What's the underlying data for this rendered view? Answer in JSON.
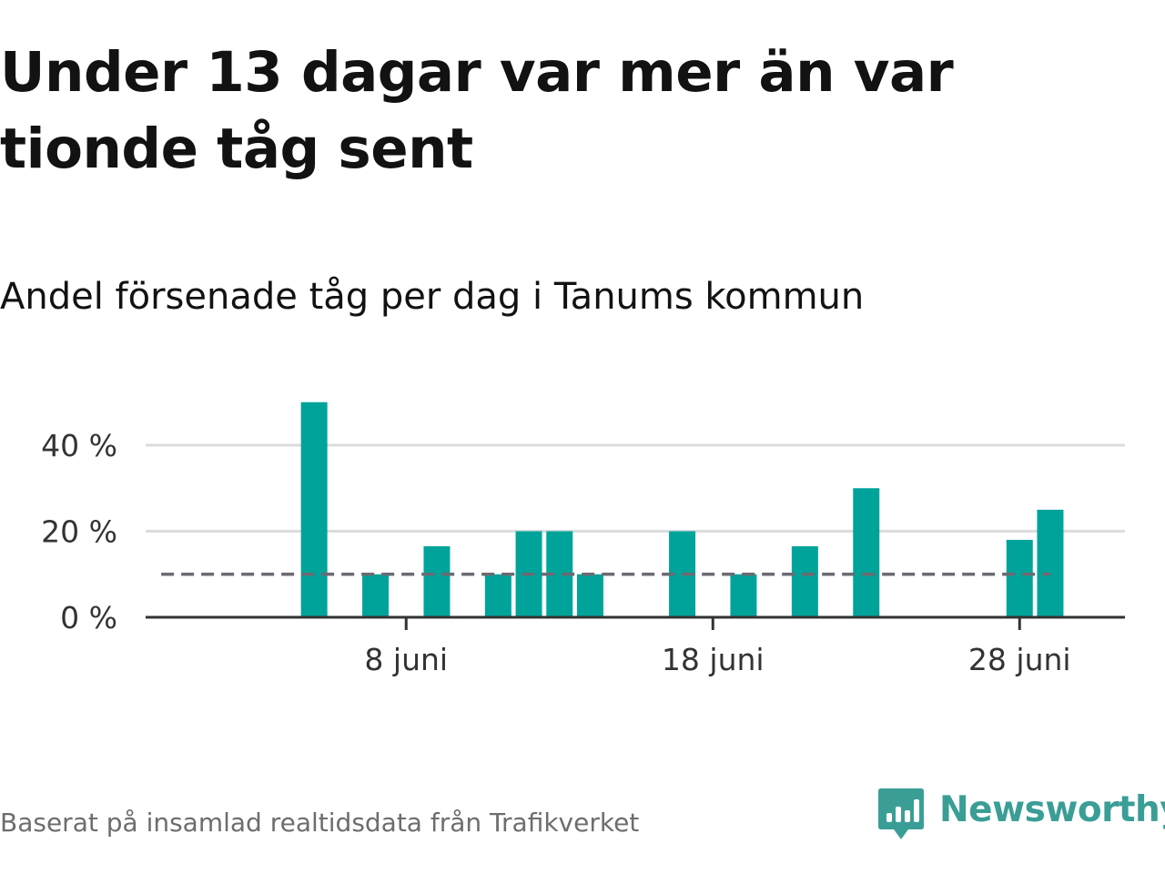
{
  "header": {
    "title": "Under 13 dagar var mer än var tionde tåg sent",
    "subtitle": "Andel försenade tåg per dag i Tanums kommun"
  },
  "footer": {
    "source": "Baserat på insamlad realtidsdata från Trafikverket",
    "brand": "Newsworthy",
    "brand_icon": "newsworthy-logo-icon"
  },
  "colors": {
    "bar": "#00a39a",
    "reference_line": "#6b6b73",
    "grid": "#dcdcdc",
    "axis": "#333333",
    "brand": "#3a9e96"
  },
  "chart_data": {
    "type": "bar",
    "x_unit": "day",
    "x_start": "1 juni",
    "x_end": "30 juni",
    "days": [
      1,
      2,
      3,
      4,
      5,
      6,
      7,
      8,
      9,
      10,
      11,
      12,
      13,
      14,
      15,
      16,
      17,
      18,
      19,
      20,
      21,
      22,
      23,
      24,
      25,
      26,
      27,
      28,
      29
    ],
    "values": [
      0,
      0,
      0,
      0,
      50,
      0,
      10,
      0,
      16.5,
      0,
      10,
      20,
      20,
      10,
      0,
      0,
      20,
      0,
      10,
      0,
      16.5,
      0,
      30,
      0,
      0,
      0,
      0,
      18,
      25
    ],
    "x_ticks": [
      {
        "day": 8,
        "label": "8 juni"
      },
      {
        "day": 18,
        "label": "18 juni"
      },
      {
        "day": 28,
        "label": "28 juni"
      }
    ],
    "y_ticks": [
      {
        "value": 0,
        "label": "0 %"
      },
      {
        "value": 20,
        "label": "20 %"
      },
      {
        "value": 40,
        "label": "40 %"
      }
    ],
    "ylim": [
      0,
      50
    ],
    "reference_line": {
      "value": 10,
      "style": "dashed",
      "from_day": 0,
      "to_day": 29
    },
    "grid": true,
    "xlabel": "",
    "ylabel": ""
  }
}
